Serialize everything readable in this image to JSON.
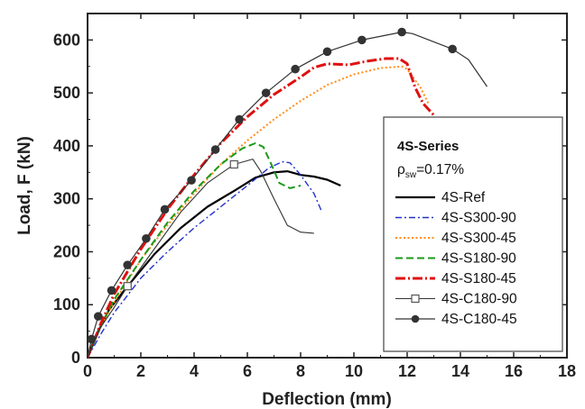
{
  "chart_data": {
    "type": "line",
    "xlabel": "Deflection (mm)",
    "ylabel": "Load, F (kN)",
    "xlim": [
      0,
      18
    ],
    "ylim": [
      0,
      650
    ],
    "xticks": [
      0,
      2,
      4,
      6,
      8,
      10,
      12,
      14,
      16,
      18
    ],
    "yticks": [
      0,
      100,
      200,
      300,
      400,
      500,
      600
    ],
    "grid": false,
    "legend": {
      "placement": "right",
      "title": "4S-Series",
      "rho_symbol": "ρ",
      "rho_sub": "sw",
      "rho_value": "=0.17%"
    },
    "series": [
      {
        "name": "4S-Ref",
        "color": "#000000",
        "dash": "",
        "width": 2.2,
        "marker": "none",
        "x": [
          0,
          0.3,
          0.8,
          1.5,
          2.5,
          3.5,
          4.5,
          5.5,
          6.3,
          7.0,
          7.5,
          8.0,
          8.5,
          9.0,
          9.5
        ],
        "y": [
          0,
          40,
          90,
          135,
          195,
          245,
          285,
          315,
          340,
          350,
          352,
          345,
          342,
          336,
          325
        ]
      },
      {
        "name": "4S-S300-90",
        "color": "#2233cc",
        "dash": "7,3,2,3",
        "width": 1.4,
        "marker": "none",
        "x": [
          0,
          0.5,
          1.0,
          2.0,
          3.0,
          4.0,
          5.0,
          6.0,
          6.8,
          7.3,
          7.6,
          8.0,
          8.5,
          8.8
        ],
        "y": [
          0,
          45,
          85,
          150,
          200,
          245,
          285,
          325,
          358,
          370,
          368,
          345,
          310,
          275
        ]
      },
      {
        "name": "4S-S300-45",
        "color": "#ff8c1a",
        "dash": "2,2.5",
        "width": 2.0,
        "marker": "none",
        "x": [
          0,
          0.5,
          1.0,
          2.0,
          3.0,
          4.0,
          5.0,
          6.0,
          7.0,
          8.0,
          9.0,
          10.0,
          11.0,
          11.8,
          12.0,
          12.5,
          12.8
        ],
        "y": [
          0,
          58,
          105,
          185,
          250,
          310,
          365,
          410,
          450,
          485,
          515,
          535,
          547,
          550,
          545,
          510,
          480
        ]
      },
      {
        "name": "4S-S180-90",
        "color": "#1a9a1a",
        "dash": "8,4",
        "width": 2.0,
        "marker": "none",
        "x": [
          0,
          0.5,
          1.0,
          2.0,
          3.0,
          4.0,
          5.0,
          5.8,
          6.3,
          6.6,
          6.9,
          7.2,
          7.6,
          8.0
        ],
        "y": [
          0,
          60,
          110,
          185,
          255,
          315,
          365,
          395,
          405,
          398,
          365,
          330,
          320,
          325
        ]
      },
      {
        "name": "4S-S180-45",
        "color": "#e01010",
        "dash": "11,3,2,3",
        "width": 3.0,
        "marker": "none",
        "x": [
          0,
          0.5,
          1.0,
          2.0,
          3.0,
          4.0,
          5.0,
          6.0,
          7.0,
          8.0,
          8.5,
          9.0,
          9.8,
          10.5,
          11.2,
          11.7,
          12.0,
          12.3,
          12.6,
          13.0
        ],
        "y": [
          0,
          65,
          120,
          205,
          280,
          345,
          405,
          455,
          497,
          530,
          548,
          555,
          553,
          560,
          565,
          565,
          555,
          510,
          480,
          458
        ]
      },
      {
        "name": "4S-C180-90",
        "color": "#333333",
        "dash": "",
        "width": 1.1,
        "marker": "open-square",
        "x": [
          0,
          0.5,
          1.0,
          1.5,
          2.5,
          3.5,
          4.5,
          5.5,
          6.0,
          6.2,
          6.5,
          7.0,
          7.5,
          8.0,
          8.5
        ],
        "y": [
          0,
          58,
          95,
          135,
          205,
          275,
          330,
          365,
          372,
          375,
          352,
          300,
          250,
          237,
          235
        ]
      },
      {
        "name": "4S-C180-45",
        "color": "#333333",
        "dash": "",
        "width": 1.2,
        "marker": "filled-circle",
        "x": [
          0,
          0.15,
          0.4,
          0.9,
          1.5,
          2.2,
          2.9,
          3.9,
          4.8,
          5.7,
          6.7,
          7.8,
          9.0,
          10.3,
          11.8,
          12.2,
          13.7,
          14.3,
          15.0
        ],
        "y": [
          0,
          35,
          78,
          127,
          175,
          225,
          280,
          335,
          393,
          450,
          500,
          545,
          578,
          600,
          615,
          612,
          583,
          563,
          512
        ],
        "marker_idx": [
          1,
          2,
          3,
          4,
          5,
          6,
          7,
          8,
          9,
          10,
          11,
          12,
          13,
          14,
          16
        ]
      }
    ]
  }
}
